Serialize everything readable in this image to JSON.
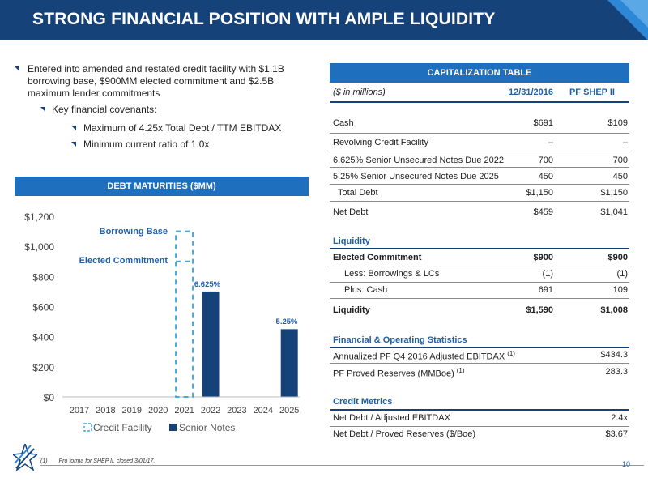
{
  "header": {
    "title": "STRONG FINANCIAL POSITION WITH AMPLE LIQUIDITY"
  },
  "bullets": {
    "b1_line1": "Entered into amended and restated credit facility with $1.1B",
    "b1_line2": "borrowing base, $900MM elected commitment and $2.5B",
    "b1_line3": "maximum lender commitments",
    "b2": "Key financial covenants:",
    "b3": "Maximum of 4.25x Total Debt / TTM EBITDAX",
    "b4": "Minimum current ratio of 1.0x"
  },
  "debt_box": {
    "title": "DEBT MATURITIES ($MM)"
  },
  "chart_data": {
    "type": "bar",
    "categories": [
      "2017",
      "2018",
      "2019",
      "2020",
      "2021",
      "2022",
      "2023",
      "2024",
      "2025"
    ],
    "series": [
      {
        "name": "Credit Facility",
        "values": [
          0,
          0,
          0,
          0,
          1100,
          0,
          0,
          0,
          0
        ],
        "style": "dashed-outline",
        "color": "#3aaae0"
      },
      {
        "name": "Senior Notes",
        "values": [
          0,
          0,
          0,
          0,
          0,
          700,
          0,
          0,
          450
        ],
        "color": "#16427a"
      }
    ],
    "yticks": [
      "$0",
      "$200",
      "$400",
      "$600",
      "$800",
      "$1,000",
      "$1,200"
    ],
    "ylim": [
      0,
      1200
    ],
    "elected_commitment": 900,
    "annotations": {
      "borrowing_base": "Borrowing Base",
      "elected_commitment": "Elected Commitment",
      "bar_2022": "6.625%",
      "bar_2025": "5.25%"
    },
    "legend_position": "bottom",
    "grid": false
  },
  "cap": {
    "title": "CAPITALIZATION TABLE",
    "units": "($ in millions)",
    "col1": "12/31/2016",
    "col2": "PF SHEP II",
    "rows": [
      {
        "label": "Cash",
        "v1": "$691",
        "v2": "$109"
      },
      {
        "label": "Revolving Credit Facility",
        "v1": "–",
        "v2": "–"
      },
      {
        "label": "6.625% Senior Unsecured Notes Due 2022",
        "v1": "700",
        "v2": "700"
      },
      {
        "label": "5.25% Senior Unsecured Notes Due 2025",
        "v1": "450",
        "v2": "450"
      },
      {
        "label": "Total Debt",
        "v1": "$1,150",
        "v2": "$1,150"
      },
      {
        "label": "Net Debt",
        "v1": "$459",
        "v2": "$1,041"
      }
    ],
    "liq_title": "Liquidity",
    "liq_rows": [
      {
        "label": "Elected Commitment",
        "v1": "$900",
        "v2": "$900"
      },
      {
        "label": "Less: Borrowings & LCs",
        "v1": "(1)",
        "v2": "(1)"
      },
      {
        "label": "Plus: Cash",
        "v1": "691",
        "v2": "109"
      },
      {
        "label": "Liquidity",
        "v1": "$1,590",
        "v2": "$1,008"
      }
    ],
    "fin_title": "Financial & Operating Statistics",
    "fin_rows": [
      {
        "label": "Annualized PF Q4 2016 Adjusted EBITDAX",
        "sup": "(1)",
        "v2": "$434.3"
      },
      {
        "label": "PF Proved Reserves (MMBoe)",
        "sup": "(1)",
        "v2": "283.3"
      }
    ],
    "credit_title": "Credit Metrics",
    "credit_rows": [
      {
        "label": "Net Debt / Adjusted EBITDAX",
        "v2": "2.4x"
      },
      {
        "label": "Net Debt / Proved Reserves ($/Boe)",
        "v2": "$3.67"
      }
    ]
  },
  "footer": {
    "note_num": "(1)",
    "note_text": "Pro forma for SHEP II, closed 3/01/17.",
    "page": "10"
  }
}
